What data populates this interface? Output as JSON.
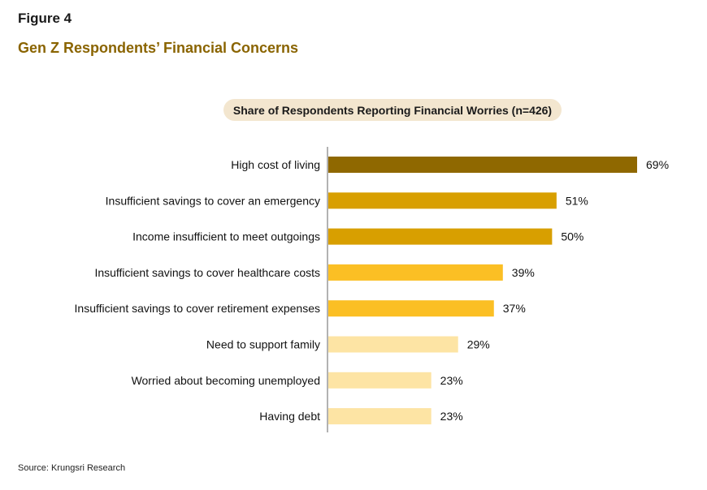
{
  "figure": {
    "label": "Figure 4",
    "title": "Gen Z Respondents’ Financial Concerns"
  },
  "chart_data": {
    "type": "bar",
    "orientation": "horizontal",
    "title": "Share of Respondents Reporting Financial Worries (n=426)",
    "categories": [
      "High cost of living",
      "Insufficient savings to cover an emergency",
      "Income insufficient to meet outgoings",
      "Insufficient savings to cover healthcare costs",
      "Insufficient savings to cover retirement expenses",
      "Need to support family",
      "Worried about becoming unemployed",
      "Having debt"
    ],
    "values": [
      69,
      51,
      50,
      39,
      37,
      29,
      23,
      23
    ],
    "value_labels": [
      "69%",
      "51%",
      "50%",
      "39%",
      "37%",
      "29%",
      "23%",
      "23%"
    ],
    "bar_colors": [
      "#8f6800",
      "#d89f00",
      "#d89f00",
      "#fbbf24",
      "#fbbf24",
      "#fde4a4",
      "#fde4a4",
      "#fde4a4"
    ],
    "xlim": [
      0,
      69
    ],
    "grid": false
  },
  "source": "Source: Krungsri Research"
}
